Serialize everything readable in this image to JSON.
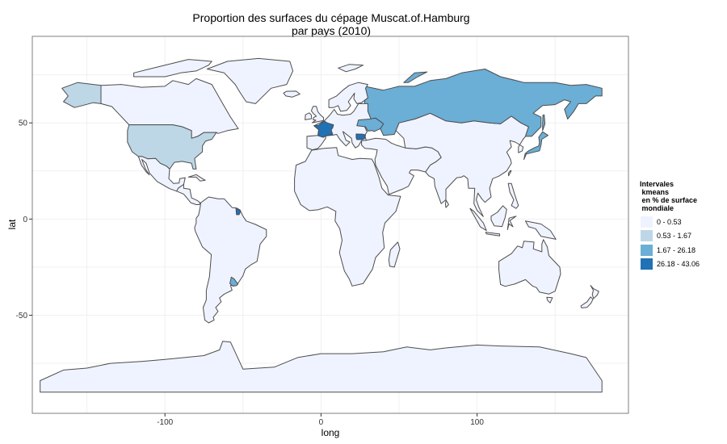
{
  "title_line1": "Proportion des surfaces du cépage Muscat.of.Hamburg",
  "title_line2": "par pays (2010)",
  "axes": {
    "xlabel": "long",
    "ylabel": "lat",
    "xlim": [
      -185,
      197
    ],
    "ylim": [
      -101,
      95
    ],
    "xticks": [
      -100,
      0,
      100
    ],
    "yticks": [
      -50,
      0,
      50
    ],
    "grid": true
  },
  "legend": {
    "title_lines": [
      "Intervales",
      " kmeans",
      " en % de surface",
      " mondiale"
    ],
    "placement": "right",
    "items": [
      {
        "label": "0 - 0.53",
        "color": "#eff3ff"
      },
      {
        "label": "0.53 - 1.67",
        "color": "#bdd7e7"
      },
      {
        "label": "1.67 - 26.18",
        "color": "#6baed6"
      },
      {
        "label": "26.18 - 43.06",
        "color": "#2171b5"
      }
    ]
  },
  "colors": {
    "panel_border": "#7f7f7f",
    "grid_major": "#f0f0f0",
    "country_border": "#4d4d4d"
  },
  "chart_data": {
    "type": "choropleth",
    "classes": [
      "0 - 0.53",
      "0.53 - 1.67",
      "1.67 - 26.18",
      "26.18 - 43.06"
    ],
    "regions": [
      {
        "name": "Canada",
        "class": 0
      },
      {
        "name": "Greenland",
        "class": 0
      },
      {
        "name": "Alaska",
        "class": 1
      },
      {
        "name": "USA",
        "class": 1
      },
      {
        "name": "Mexico",
        "class": 0
      },
      {
        "name": "Central America",
        "class": 0
      },
      {
        "name": "Cuba",
        "class": 0
      },
      {
        "name": "South America",
        "class": 0
      },
      {
        "name": "French Guiana",
        "class": 3
      },
      {
        "name": "Uruguay",
        "class": 2
      },
      {
        "name": "Europe",
        "class": 0
      },
      {
        "name": "France",
        "class": 3
      },
      {
        "name": "Bulgaria",
        "class": 3
      },
      {
        "name": "Russia",
        "class": 2
      },
      {
        "name": "Ukraine",
        "class": 2
      },
      {
        "name": "Africa",
        "class": 0
      },
      {
        "name": "Madagascar",
        "class": 0
      },
      {
        "name": "Middle East",
        "class": 0
      },
      {
        "name": "Asia",
        "class": 0
      },
      {
        "name": "Japan",
        "class": 2
      },
      {
        "name": "Indonesia",
        "class": 0
      },
      {
        "name": "Australia",
        "class": 0
      },
      {
        "name": "New Zealand",
        "class": 0
      },
      {
        "name": "Antarctica",
        "class": 0
      },
      {
        "name": "UK",
        "class": 0
      },
      {
        "name": "Iceland",
        "class": 0
      }
    ]
  }
}
